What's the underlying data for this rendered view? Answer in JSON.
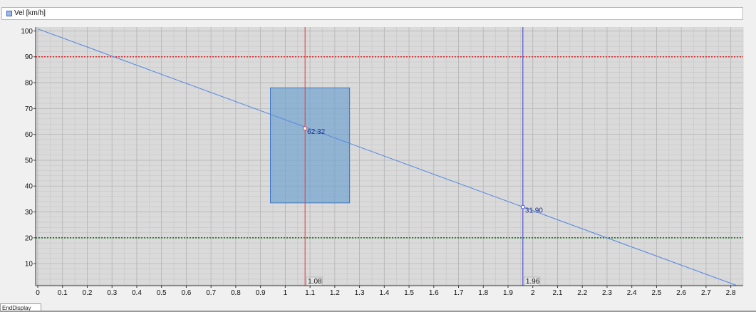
{
  "legend": {
    "label": "Vel [km/h]",
    "swatch_color": "#9fb9e6"
  },
  "bottom_tab": {
    "label": "EndDisplay"
  },
  "chart_data": {
    "type": "line",
    "series": [
      {
        "name": "Vel [km/h]",
        "color": "#4f86e3",
        "x": [
          0,
          2.82
        ],
        "y": [
          100.8,
          1.7
        ]
      }
    ],
    "xlim": [
      0,
      2.85
    ],
    "ylim": [
      1.5,
      101.5
    ],
    "xticks": [
      0,
      0.1,
      0.2,
      0.3,
      0.4,
      0.5,
      0.6,
      0.7,
      0.8,
      0.9,
      1,
      1.1,
      1.2,
      1.3,
      1.4,
      1.5,
      1.6,
      1.7,
      1.8,
      1.9,
      2,
      2.1,
      2.2,
      2.3,
      2.4,
      2.5,
      2.6,
      2.7,
      2.8
    ],
    "xtick_labels": [
      "0",
      "0.1",
      "0.2",
      "0.3",
      "0.4",
      "0.5",
      "0.6",
      "0.7",
      "0.8",
      "0.9",
      "1",
      "1.1",
      "1.2",
      "1.3",
      "1.4",
      "1.5",
      "1.6",
      "1.7",
      "1.8",
      "1.9",
      "2",
      "2.1",
      "2.2",
      "2.3",
      "2.4",
      "2.5",
      "2.6",
      "2.7",
      "2.8"
    ],
    "yticks": [
      10,
      20,
      30,
      40,
      50,
      60,
      70,
      80,
      90,
      100
    ],
    "ytick_labels": [
      "10",
      "20",
      "30",
      "40",
      "50",
      "60",
      "70",
      "80",
      "90",
      "100"
    ],
    "grid": true,
    "reference_lines": [
      {
        "y": 90,
        "color": "#e02020",
        "style": "dotted"
      },
      {
        "y": 20,
        "color": "#1b7a1b",
        "style": "dotted"
      }
    ],
    "cursors": [
      {
        "x": 1.08,
        "x_label": "1.08",
        "value": 62.32,
        "value_label": "62.32",
        "color": "#e83a3a"
      },
      {
        "x": 1.96,
        "x_label": "1.96",
        "value": 31.9,
        "value_label": "31.90",
        "color": "#3a3ad8"
      }
    ],
    "highlight_region": {
      "x": [
        0.94,
        1.26
      ],
      "y": [
        33.5,
        78
      ],
      "color": "#6c9fd0"
    }
  }
}
